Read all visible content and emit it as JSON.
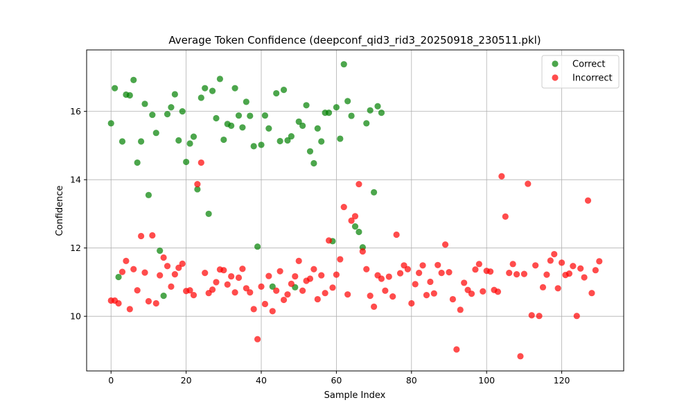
{
  "chart_data": {
    "type": "scatter",
    "title": "Average Token Confidence (deepconf_qid3_rid3_20250918_230511.pkl)",
    "xlabel": "Sample Index",
    "ylabel": "Confidence",
    "xlim": [
      -6.5,
      136.5
    ],
    "ylim": [
      8.4,
      17.8
    ],
    "xticks": [
      0,
      20,
      40,
      60,
      80,
      100,
      120
    ],
    "yticks": [
      10,
      12,
      14,
      16
    ],
    "grid": true,
    "legend_position": "top-right",
    "series": [
      {
        "name": "Correct",
        "color": "#008000",
        "points": [
          [
            0,
            15.65
          ],
          [
            1,
            16.68
          ],
          [
            2,
            11.15
          ],
          [
            3,
            15.12
          ],
          [
            4,
            16.49
          ],
          [
            5,
            16.47
          ],
          [
            6,
            16.92
          ],
          [
            7,
            14.5
          ],
          [
            8,
            15.12
          ],
          [
            9,
            16.22
          ],
          [
            10,
            13.55
          ],
          [
            11,
            15.9
          ],
          [
            12,
            15.37
          ],
          [
            13,
            11.92
          ],
          [
            14,
            10.6
          ],
          [
            15,
            15.92
          ],
          [
            16,
            16.12
          ],
          [
            17,
            16.5
          ],
          [
            18,
            15.15
          ],
          [
            19,
            16
          ],
          [
            20,
            14.52
          ],
          [
            21,
            15.06
          ],
          [
            22,
            15.26
          ],
          [
            23,
            13.72
          ],
          [
            24,
            16.4
          ],
          [
            25,
            16.68
          ],
          [
            26,
            13
          ],
          [
            27,
            16.6
          ],
          [
            28,
            15.8
          ],
          [
            29,
            16.95
          ],
          [
            30,
            15.17
          ],
          [
            31,
            15.63
          ],
          [
            32,
            15.58
          ],
          [
            33,
            16.68
          ],
          [
            34,
            15.88
          ],
          [
            35,
            15.53
          ],
          [
            36,
            16.28
          ],
          [
            37,
            15.87
          ],
          [
            38,
            14.98
          ],
          [
            39,
            12.04
          ],
          [
            40,
            15.02
          ],
          [
            41,
            15.88
          ],
          [
            42,
            15.5
          ],
          [
            43,
            10.87
          ],
          [
            44,
            16.53
          ],
          [
            45,
            15.13
          ],
          [
            46,
            16.63
          ],
          [
            47,
            15.15
          ],
          [
            48,
            15.27
          ],
          [
            49,
            10.85
          ],
          [
            50,
            15.7
          ],
          [
            51,
            15.58
          ],
          [
            52,
            16.18
          ],
          [
            53,
            14.83
          ],
          [
            54,
            14.48
          ],
          [
            55,
            15.5
          ],
          [
            56,
            15.12
          ],
          [
            57,
            15.96
          ],
          [
            58,
            15.96
          ],
          [
            59,
            12.2
          ],
          [
            60,
            16.12
          ],
          [
            61,
            15.2
          ],
          [
            62,
            17.38
          ],
          [
            63,
            16.3
          ],
          [
            64,
            15.87
          ],
          [
            65,
            12.63
          ],
          [
            66,
            12.47
          ],
          [
            67,
            12.02
          ],
          [
            68,
            15.65
          ],
          [
            69,
            16.03
          ],
          [
            70,
            13.63
          ],
          [
            71,
            16.15
          ],
          [
            72,
            15.96
          ]
        ]
      },
      {
        "name": "Incorrect",
        "color": "#ff0000",
        "points": [
          [
            0,
            10.46
          ],
          [
            1,
            10.46
          ],
          [
            2,
            10.38
          ],
          [
            3,
            11.3
          ],
          [
            4,
            11.62
          ],
          [
            5,
            10.21
          ],
          [
            6,
            11.38
          ],
          [
            7,
            10.76
          ],
          [
            8,
            12.35
          ],
          [
            9,
            11.28
          ],
          [
            10,
            10.44
          ],
          [
            11,
            12.37
          ],
          [
            12,
            10.38
          ],
          [
            13,
            11.2
          ],
          [
            14,
            11.72
          ],
          [
            15,
            11.47
          ],
          [
            16,
            10.87
          ],
          [
            17,
            11.23
          ],
          [
            18,
            11.42
          ],
          [
            19,
            11.54
          ],
          [
            20,
            10.74
          ],
          [
            21,
            10.76
          ],
          [
            22,
            10.62
          ],
          [
            23,
            13.87
          ],
          [
            24,
            14.5
          ],
          [
            25,
            11.27
          ],
          [
            26,
            10.68
          ],
          [
            27,
            10.78
          ],
          [
            28,
            11
          ],
          [
            29,
            11.37
          ],
          [
            30,
            11.35
          ],
          [
            31,
            10.93
          ],
          [
            32,
            11.17
          ],
          [
            33,
            10.7
          ],
          [
            34,
            11.13
          ],
          [
            35,
            11.39
          ],
          [
            36,
            10.82
          ],
          [
            37,
            10.7
          ],
          [
            38,
            10.21
          ],
          [
            39,
            9.33
          ],
          [
            40,
            10.87
          ],
          [
            41,
            10.36
          ],
          [
            42,
            11.18
          ],
          [
            43,
            10.15
          ],
          [
            44,
            10.75
          ],
          [
            45,
            11.32
          ],
          [
            46,
            10.48
          ],
          [
            47,
            10.64
          ],
          [
            48,
            10.95
          ],
          [
            49,
            11.17
          ],
          [
            50,
            11.62
          ],
          [
            51,
            10.75
          ],
          [
            52,
            11.04
          ],
          [
            53,
            11.1
          ],
          [
            54,
            11.38
          ],
          [
            55,
            10.5
          ],
          [
            56,
            11.2
          ],
          [
            57,
            10.68
          ],
          [
            58,
            12.22
          ],
          [
            59,
            10.84
          ],
          [
            60,
            11.22
          ],
          [
            61,
            11.67
          ],
          [
            62,
            13.2
          ],
          [
            63,
            10.64
          ],
          [
            64,
            12.8
          ],
          [
            65,
            12.93
          ],
          [
            66,
            13.87
          ],
          [
            67,
            11.9
          ],
          [
            68,
            11.38
          ],
          [
            69,
            10.6
          ],
          [
            70,
            10.28
          ],
          [
            71,
            11.2
          ],
          [
            72,
            11.1
          ],
          [
            73,
            10.75
          ],
          [
            74,
            11.16
          ],
          [
            75,
            10.58
          ],
          [
            76,
            12.39
          ],
          [
            77,
            11.26
          ],
          [
            78,
            11.49
          ],
          [
            79,
            11.38
          ],
          [
            80,
            10.38
          ],
          [
            81,
            10.94
          ],
          [
            82,
            11.27
          ],
          [
            83,
            11.49
          ],
          [
            84,
            10.62
          ],
          [
            85,
            11.01
          ],
          [
            86,
            10.67
          ],
          [
            87,
            11.5
          ],
          [
            88,
            11.27
          ],
          [
            89,
            12.1
          ],
          [
            90,
            11.29
          ],
          [
            91,
            10.5
          ],
          [
            92,
            9.03
          ],
          [
            93,
            10.19
          ],
          [
            94,
            10.98
          ],
          [
            95,
            10.77
          ],
          [
            96,
            10.66
          ],
          [
            97,
            11.37
          ],
          [
            98,
            11.53
          ],
          [
            99,
            10.73
          ],
          [
            100,
            11.33
          ],
          [
            101,
            11.31
          ],
          [
            102,
            10.77
          ],
          [
            103,
            10.72
          ],
          [
            104,
            14.1
          ],
          [
            105,
            12.92
          ],
          [
            106,
            11.27
          ],
          [
            107,
            11.53
          ],
          [
            108,
            11.23
          ],
          [
            109,
            8.83
          ],
          [
            110,
            11.24
          ],
          [
            111,
            13.88
          ],
          [
            112,
            10.03
          ],
          [
            113,
            11.49
          ],
          [
            114,
            10.01
          ],
          [
            115,
            10.85
          ],
          [
            116,
            11.22
          ],
          [
            117,
            11.63
          ],
          [
            118,
            11.82
          ],
          [
            119,
            10.82
          ],
          [
            120,
            11.57
          ],
          [
            121,
            11.21
          ],
          [
            122,
            11.25
          ],
          [
            123,
            11.47
          ],
          [
            124,
            10.01
          ],
          [
            125,
            11.4
          ],
          [
            126,
            11.14
          ],
          [
            127,
            13.39
          ],
          [
            128,
            10.68
          ],
          [
            129,
            11.35
          ],
          [
            130,
            11.61
          ]
        ]
      }
    ]
  }
}
